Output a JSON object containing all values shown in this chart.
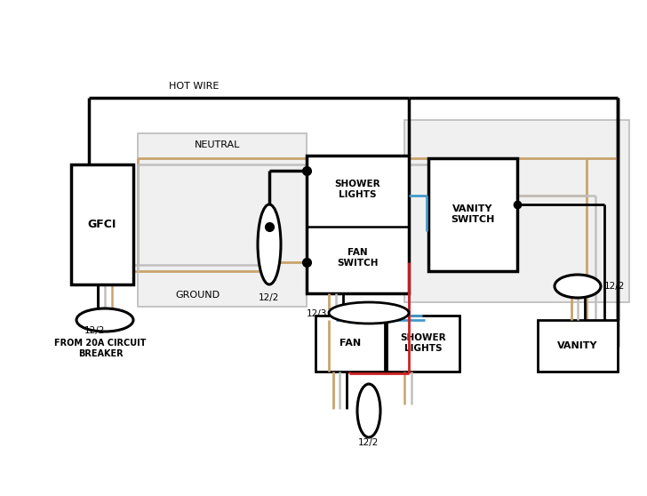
{
  "bg": "#ffffff",
  "lc": "#000000",
  "brown": "#c8a46c",
  "gray_w": "#c0c0c0",
  "red_w": "#cc2222",
  "blue_w": "#4499cc",
  "panel_fill": "#f0f0f0",
  "panel_edge": "#bbbbbb",
  "labels": {
    "hot_wire": "HOT WIRE",
    "neutral": "NEUTRAL",
    "ground": "GROUND",
    "gfci": "GFCI",
    "shower_lights_sw": "SHOWER\nLIGHTS",
    "fan_switch": "FAN\nSWITCH",
    "vanity_switch": "VANITY\nSWITCH",
    "fan": "FAN",
    "shower_lights_bot": "SHOWER\nLIGHTS",
    "vanity": "VANITY",
    "122a": "12/2",
    "122b": "12/2",
    "123": "12/3",
    "122c": "12/2",
    "122d": "12/2",
    "breaker": "FROM 20A CIRCUIT\nBREAKER"
  },
  "figsize": [
    7.28,
    5.58
  ],
  "dpi": 100
}
